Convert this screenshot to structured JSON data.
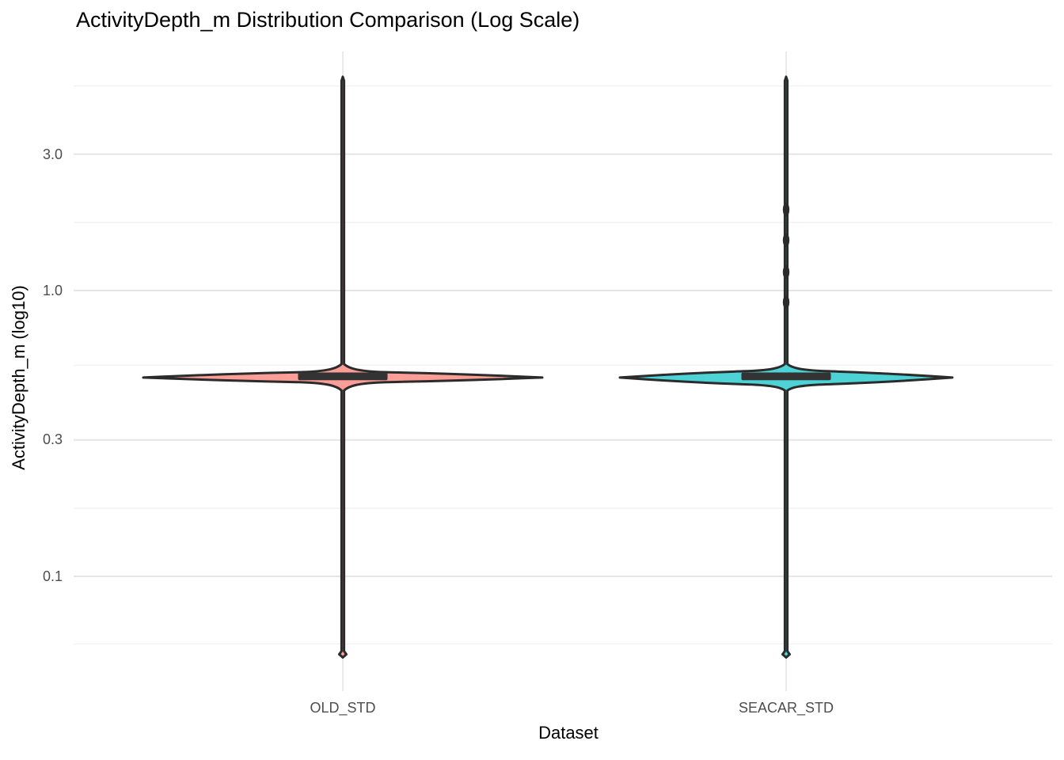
{
  "title": "ActivityDepth_m Distribution Comparison (Log Scale)",
  "axes": {
    "y": {
      "title": "ActivityDepth_m (log10)",
      "scale": "log10",
      "ticks": [
        "3.0",
        "1.0",
        "0.3",
        "0.1"
      ]
    },
    "x": {
      "title": "Dataset",
      "categories": [
        "OLD_STD",
        "SEACAR_STD"
      ]
    }
  },
  "colors": {
    "old_std_fill": "#FA9E97",
    "seacar_std_fill": "#4DD2D5",
    "outline": "#2b2b2b",
    "box_fill": "#333333",
    "grid_major": "#E5E5E5",
    "grid_minor": "#F1F1F1",
    "grid_vertical": "#E9E9E9",
    "tick_label": "#4d4d4d"
  },
  "chart_data": {
    "type": "violin",
    "title": "ActivityDepth_m Distribution Comparison (Log Scale)",
    "xlabel": "Dataset",
    "ylabel": "ActivityDepth_m (log10)",
    "y_scale": "log10",
    "y_major_ticks": [
      3.0,
      1.0,
      0.3,
      0.1
    ],
    "y_minor_gridline_values": [
      5.2,
      1.73,
      0.548,
      0.173,
      0.058
    ],
    "grid": true,
    "legend": "none",
    "categories": [
      "OLD_STD",
      "SEACAR_STD"
    ],
    "series": [
      {
        "name": "OLD_STD",
        "fill": "#FA9E97",
        "min": 0.052,
        "max": 5.6,
        "q1": 0.487,
        "median": 0.5,
        "q3": 0.515,
        "mode": 0.496,
        "body_top": 0.518,
        "body_bottom": 0.478,
        "neck_top": 0.553,
        "neck_bottom": 0.447,
        "relative_width": 0.9,
        "box_relative_width": 0.2,
        "upper_density_bumps": []
      },
      {
        "name": "SEACAR_STD",
        "fill": "#4DD2D5",
        "min": 0.052,
        "max": 5.6,
        "q1": 0.487,
        "median": 0.5,
        "q3": 0.515,
        "mode": 0.496,
        "body_top": 0.522,
        "body_bottom": 0.47,
        "neck_top": 0.553,
        "neck_bottom": 0.447,
        "relative_width": 0.75,
        "box_relative_width": 0.2,
        "upper_density_bumps": [
          1.92,
          1.5,
          1.16,
          0.91
        ]
      }
    ]
  }
}
